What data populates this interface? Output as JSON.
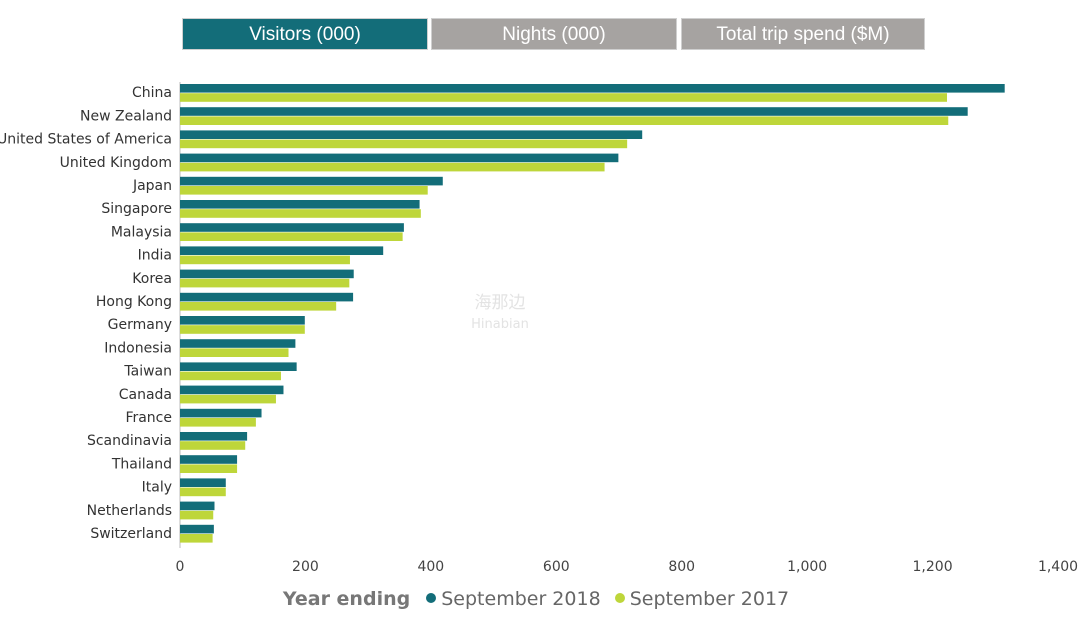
{
  "tabs": [
    {
      "label": "Visitors (000)",
      "active": true
    },
    {
      "label": "Nights (000)",
      "active": false
    },
    {
      "label": "Total trip spend ($M)",
      "active": false
    }
  ],
  "watermark": {
    "cn": "海那边",
    "en": "Hinabian"
  },
  "chart_data": {
    "type": "bar",
    "orientation": "horizontal",
    "title": "",
    "xlabel": "",
    "ylabel": "",
    "xlim": [
      0,
      1400
    ],
    "xticks": [
      0,
      200,
      400,
      600,
      800,
      1000,
      1200,
      1400
    ],
    "xtick_labels": [
      "0",
      "200",
      "400",
      "600",
      "800",
      "1,000",
      "1,200",
      "1,400"
    ],
    "grid": false,
    "legend_title": "Year ending",
    "legend_position": "bottom",
    "categories": [
      "China",
      "New Zealand",
      "United States of America",
      "United Kingdom",
      "Japan",
      "Singapore",
      "Malaysia",
      "India",
      "Korea",
      "Hong Kong",
      "Germany",
      "Indonesia",
      "Taiwan",
      "Canada",
      "France",
      "Scandinavia",
      "Thailand",
      "Italy",
      "Netherlands",
      "Switzerland"
    ],
    "series": [
      {
        "name": "September 2018",
        "color": "#136d79",
        "values": [
          1315,
          1256,
          737,
          699,
          419,
          382,
          357,
          324,
          277,
          276,
          199,
          184,
          186,
          165,
          130,
          107,
          91,
          73,
          55,
          54
        ]
      },
      {
        "name": "September 2017",
        "color": "#bed63a",
        "values": [
          1223,
          1225,
          713,
          677,
          395,
          384,
          355,
          271,
          270,
          249,
          199,
          173,
          161,
          153,
          121,
          104,
          91,
          73,
          53,
          52
        ]
      }
    ]
  }
}
